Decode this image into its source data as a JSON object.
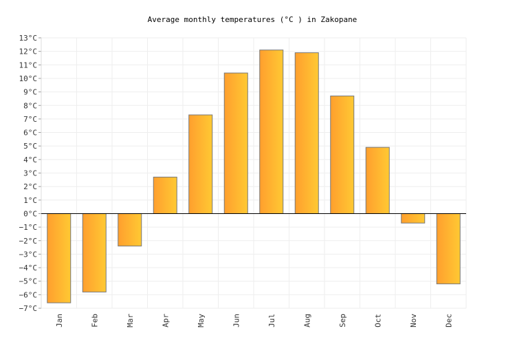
{
  "chart_data": {
    "type": "bar",
    "title": "Average monthly temperatures (°C ) in Zakopane",
    "xlabel": "",
    "ylabel": "",
    "categories": [
      "Jan",
      "Feb",
      "Mar",
      "Apr",
      "May",
      "Jun",
      "Jul",
      "Aug",
      "Sep",
      "Oct",
      "Nov",
      "Dec"
    ],
    "values": [
      -6.6,
      -5.8,
      -2.4,
      2.7,
      7.3,
      10.4,
      12.1,
      11.9,
      8.7,
      4.9,
      -0.7,
      -5.2
    ],
    "ylim": [
      -7,
      13
    ],
    "ytick_labels": [
      "13°C",
      "12°C",
      "11°C",
      "10°C",
      "9°C",
      "8°C",
      "7°C",
      "6°C",
      "5°C",
      "4°C",
      "3°C",
      "2°C",
      "1°C",
      "0°C",
      "−1°C",
      "−2°C",
      "−3°C",
      "−4°C",
      "−5°C",
      "−6°C",
      "−7°C"
    ],
    "grid": true,
    "legend": "none",
    "colors": {
      "bar_start": "#ff9f2e",
      "bar_end": "#ffc933",
      "bar_stroke": "#777777",
      "grid": "#eeeeee",
      "zero_line": "#000000"
    }
  }
}
